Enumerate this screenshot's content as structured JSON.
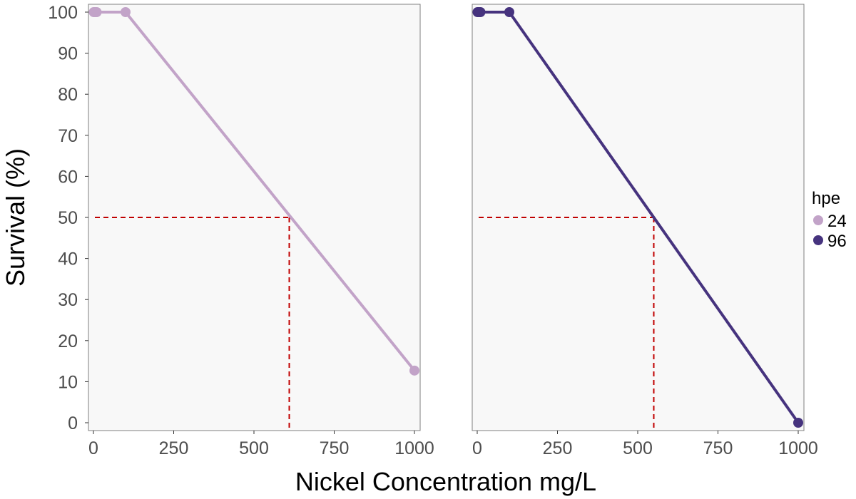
{
  "chart_data": {
    "type": "line",
    "xlabel": "Nickel Concentration mg/L",
    "ylabel": "Survival (%)",
    "xlim": [
      0,
      1000
    ],
    "ylim": [
      0,
      100
    ],
    "x_ticks": [
      0,
      250,
      500,
      750,
      1000
    ],
    "y_ticks": [
      0,
      10,
      20,
      30,
      40,
      50,
      60,
      70,
      80,
      90,
      100
    ],
    "grid": false,
    "legend": {
      "title": "hpe",
      "position": "right",
      "entries": [
        {
          "label": "24",
          "color": "#c2a3c8"
        },
        {
          "label": "96",
          "color": "#46337e"
        }
      ]
    },
    "panels": [
      {
        "series_name": "24",
        "color": "#c2a3c8",
        "points": [
          {
            "x": 1,
            "y": 100
          },
          {
            "x": 5,
            "y": 100
          },
          {
            "x": 10,
            "y": 100
          },
          {
            "x": 100,
            "y": 100
          },
          {
            "x": 1000,
            "y": 12.7
          }
        ],
        "reference_x": 610,
        "reference_y": 50
      },
      {
        "series_name": "96",
        "color": "#46337e",
        "points": [
          {
            "x": 1,
            "y": 100
          },
          {
            "x": 5,
            "y": 100
          },
          {
            "x": 10,
            "y": 100
          },
          {
            "x": 100,
            "y": 100
          },
          {
            "x": 1000,
            "y": 0
          }
        ],
        "reference_x": 550,
        "reference_y": 50
      }
    ],
    "reference_line_color": "#c00000"
  }
}
